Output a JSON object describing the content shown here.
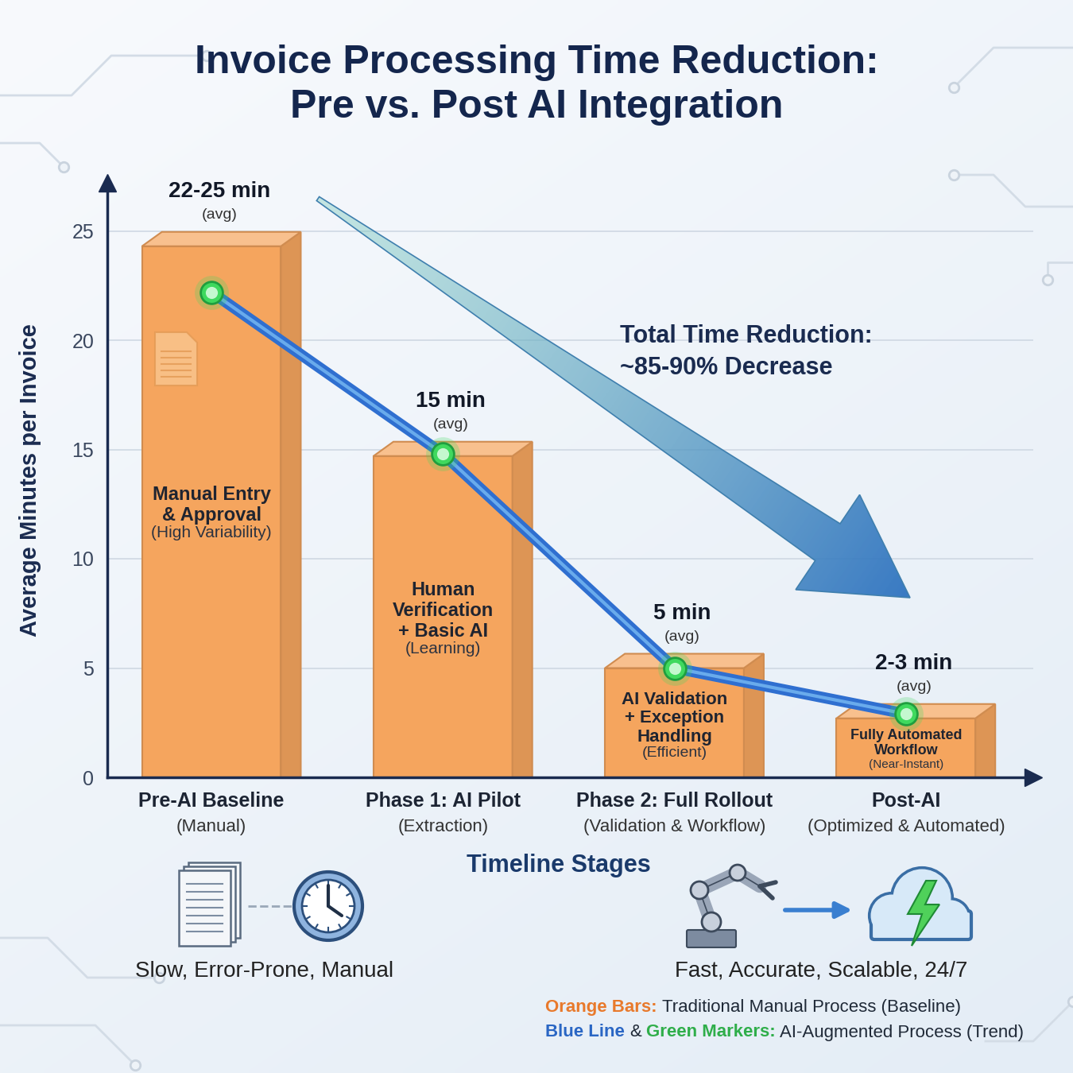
{
  "chart_data": {
    "type": "bar",
    "title": "Invoice Processing Time Reduction:\nPre vs. Post AI Integration",
    "x_label": "Timeline Stages",
    "y_label": "Average Minutes per Invoice",
    "annotation": "Total Time Reduction:\n~85-90% Decrease",
    "categories": [
      "Pre-AI Baseline",
      "Phase 1: AI Pilot",
      "Phase 2: Full Rollout",
      "Post-AI"
    ],
    "category_notes": [
      "(Manual)",
      "(Extraction)",
      "(Validation & Workflow)",
      "(Optimized & Automated)"
    ],
    "ylim": [
      0,
      27.2
    ],
    "yticks": [
      0,
      5,
      10,
      15,
      20,
      25
    ],
    "grid": true,
    "series": [
      {
        "type": "bar",
        "color": "#f5a55e",
        "values": [
          24.3,
          14.7,
          5,
          2.7
        ],
        "data_labels": true,
        "value_labels": [
          "22-25 min",
          "15 min",
          "5 min",
          "2-3 min"
        ],
        "value_notes": [
          "(avg)",
          "(avg)",
          "(avg)",
          "(avg)"
        ],
        "bar_texts": [
          "Manual Entry\n& Approval",
          "Human\nVerification\n+ Basic AI",
          "AI Validation\n+ Exception\nHandling",
          "Fully Automated\nWorkflow"
        ],
        "bar_notes": [
          "(High Variability)",
          "(Learning)",
          "(Efficient)",
          "(Near-Instant)"
        ]
      },
      {
        "type": "line",
        "color": "#2f6fd0",
        "line_style": "solid",
        "values": [
          22.2,
          14.8,
          5,
          2.9
        ]
      },
      {
        "type": "scatter",
        "color": "#3fd95e",
        "marker": "o",
        "values": [
          22.2,
          14.8,
          5,
          2.9
        ]
      }
    ]
  },
  "footer": {
    "captions": [
      "Slow, Error-Prone, Manual",
      "Fast, Accurate, Scalable, 24/7"
    ],
    "notes": [
      [
        {
          "text": "Orange Bars:",
          "color": "#e8792b"
        },
        {
          "text": "Traditional Manual Process (Baseline)"
        }
      ],
      [
        {
          "text": "Blue Line",
          "color": "#2a66c4"
        },
        {
          "text": "&"
        },
        {
          "text": "Green Markers:",
          "color": "#2fae4a"
        },
        {
          "text": "AI-Augmented Process (Trend)"
        }
      ]
    ]
  }
}
